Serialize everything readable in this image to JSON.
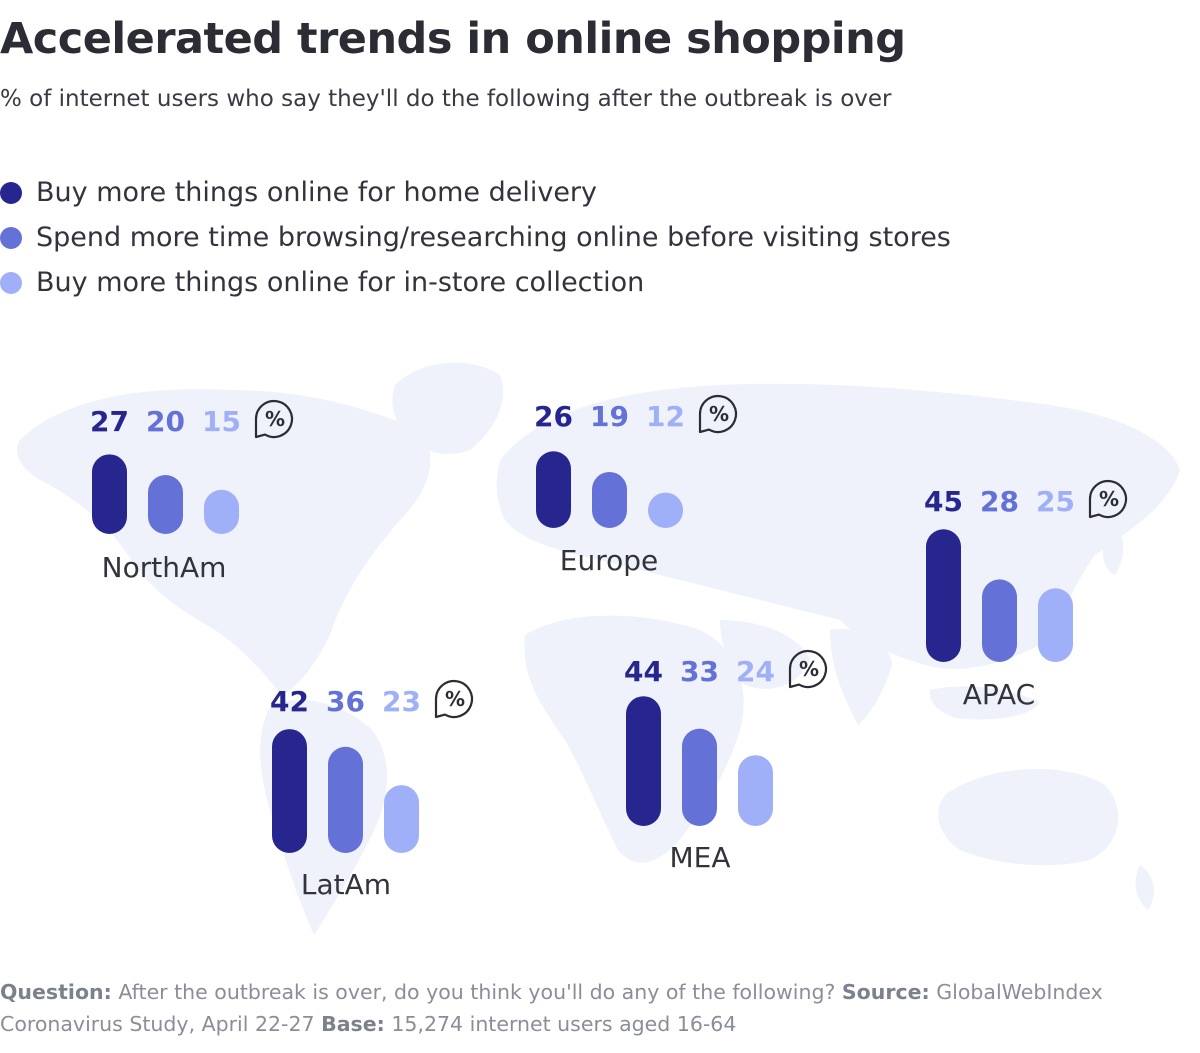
{
  "header": {
    "title": "Accelerated trends in online shopping",
    "subtitle": "% of internet users who say they'll do the following after the outbreak is over"
  },
  "colors": {
    "series1": "#27268e",
    "series2": "#6471d6",
    "series3": "#9fb0f8",
    "map": "#eff2fa",
    "pct_badge_stroke": "#2c2c35"
  },
  "chart_data": {
    "type": "bar",
    "title": "Accelerated trends in online shopping",
    "subtitle": "% of internet users who say they'll do the following after the outbreak is over",
    "unit_symbol": "%",
    "legend_position": "top-left",
    "ylim": [
      0,
      50
    ],
    "series": [
      {
        "name": "Buy more things online for home delivery"
      },
      {
        "name": "Spend more time browsing/researching online before visiting stores"
      },
      {
        "name": "Buy more things online for in-store collection"
      }
    ],
    "groups": [
      {
        "label": "NorthAm",
        "values": [
          27,
          20,
          15
        ]
      },
      {
        "label": "Europe",
        "values": [
          26,
          19,
          12
        ]
      },
      {
        "label": "APAC",
        "values": [
          45,
          28,
          25
        ]
      },
      {
        "label": "LatAm",
        "values": [
          42,
          36,
          23
        ]
      },
      {
        "label": "MEA",
        "values": [
          44,
          33,
          24
        ]
      }
    ]
  },
  "footnote": {
    "question_label": "Question:",
    "question_text": "After the outbreak is over, do you think you'll do any of the following?",
    "source_label": "Source:",
    "source_text": "GlobalWebIndex Coronavirus Study, April 22-27",
    "base_label": "Base:",
    "base_text": "15,274 internet users aged 16-64"
  }
}
